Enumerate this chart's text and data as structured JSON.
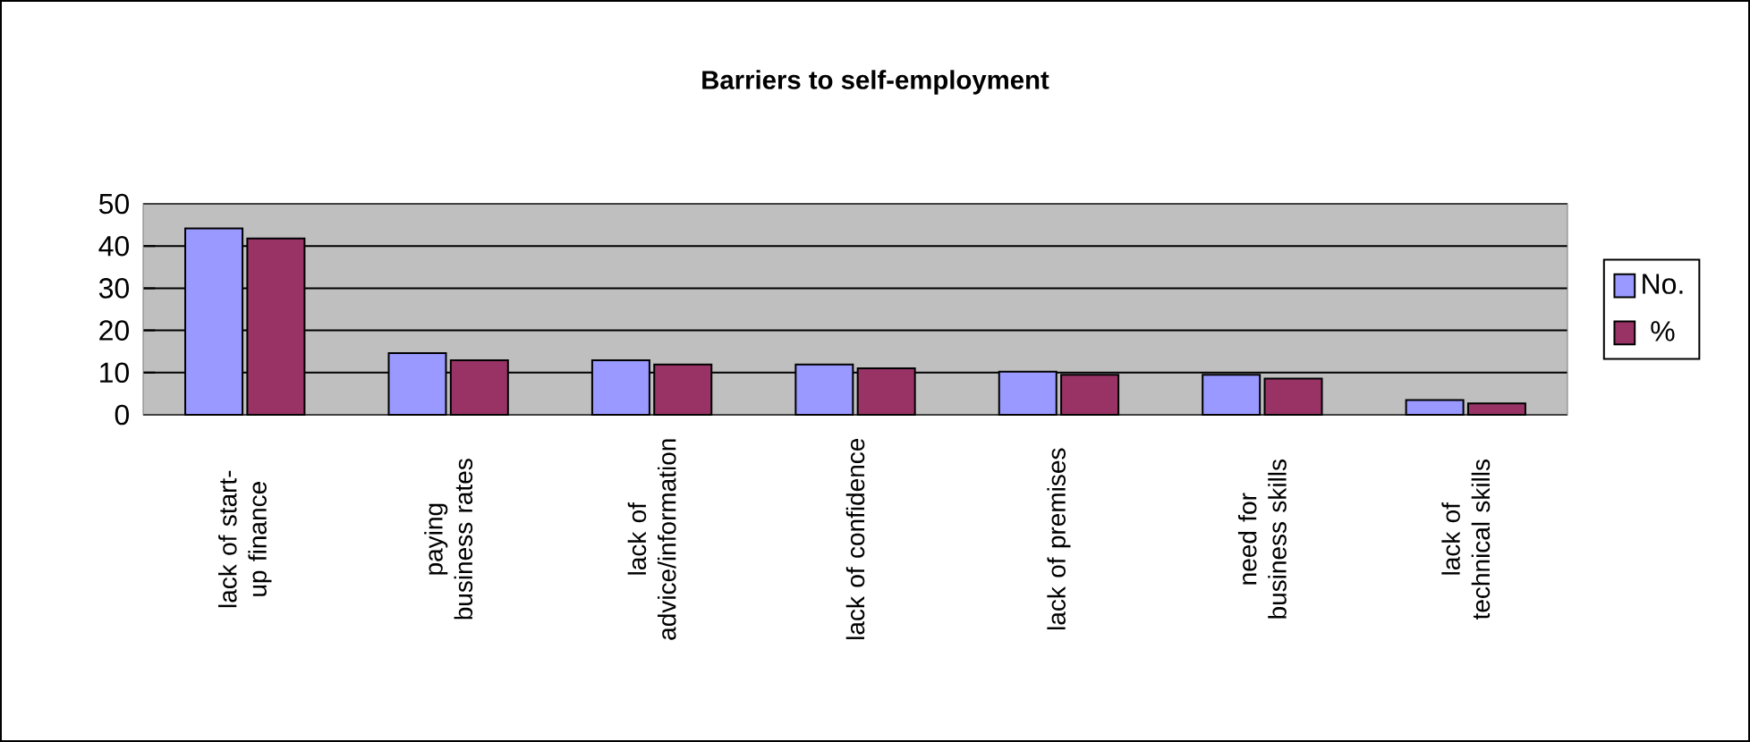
{
  "chart_data": {
    "type": "bar",
    "title": "Barriers to self-employment",
    "categories": [
      "lack of start-up finance",
      "paying business rates",
      "lack of advice/information",
      "lack of confidence",
      "lack of premises",
      "need for business skills",
      "lack of technical skills"
    ],
    "series": [
      {
        "name": "No.",
        "color": "#9999ff",
        "values": [
          44.2,
          14.6,
          12.9,
          11.9,
          10.2,
          9.5,
          3.5
        ]
      },
      {
        "name": "%",
        "color": "#993366",
        "values": [
          41.8,
          12.9,
          11.9,
          11.0,
          9.5,
          8.6,
          2.7
        ]
      }
    ],
    "ylim": [
      0,
      50
    ],
    "yticks": [
      0,
      10,
      20,
      30,
      40,
      50
    ],
    "grid": "y",
    "legend": "right"
  }
}
